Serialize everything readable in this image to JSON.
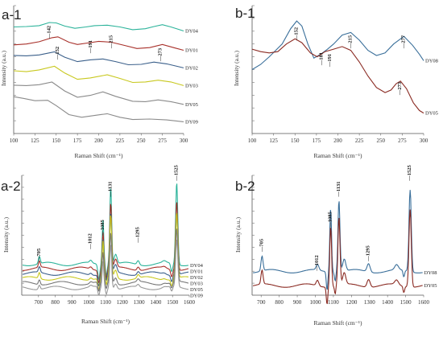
{
  "chart_data": [
    {
      "panel": "a-1",
      "type": "line",
      "title": "a-1",
      "xlabel": "Raman Shift (cm⁻¹)",
      "ylabel": "Intensity (a.u.)",
      "xlim": [
        100,
        300
      ],
      "xticks": [
        "100",
        "125",
        "150",
        "175",
        "200",
        "225",
        "250",
        "275",
        "300"
      ],
      "peak_labels": [
        {
          "x": 142,
          "label": "142"
        },
        {
          "x": 152,
          "label": "152"
        },
        {
          "x": 191,
          "label": "191"
        },
        {
          "x": 215,
          "label": "215"
        },
        {
          "x": 273,
          "label": "273"
        }
      ],
      "series": [
        {
          "name": "DY04",
          "color": "#2bb39a",
          "offset": 0.86,
          "points": [
            [
              100,
              0.12
            ],
            [
              115,
              0.13
            ],
            [
              130,
              0.15
            ],
            [
              142,
              0.22
            ],
            [
              150,
              0.21
            ],
            [
              160,
              0.14
            ],
            [
              172,
              0.09
            ],
            [
              185,
              0.12
            ],
            [
              195,
              0.15
            ],
            [
              210,
              0.16
            ],
            [
              225,
              0.12
            ],
            [
              240,
              0.06
            ],
            [
              255,
              0.08
            ],
            [
              265,
              0.13
            ],
            [
              275,
              0.17
            ],
            [
              285,
              0.12
            ],
            [
              300,
              0.03
            ]
          ]
        },
        {
          "name": "DY01",
          "color": "#a8302a",
          "offset": 0.7,
          "points": [
            [
              100,
              0.14
            ],
            [
              115,
              0.16
            ],
            [
              130,
              0.21
            ],
            [
              145,
              0.3
            ],
            [
              152,
              0.32
            ],
            [
              165,
              0.2
            ],
            [
              175,
              0.15
            ],
            [
              190,
              0.19
            ],
            [
              200,
              0.22
            ],
            [
              215,
              0.2
            ],
            [
              230,
              0.13
            ],
            [
              245,
              0.06
            ],
            [
              260,
              0.08
            ],
            [
              275,
              0.15
            ],
            [
              290,
              0.07
            ],
            [
              300,
              0.02
            ]
          ]
        },
        {
          "name": "DY02",
          "color": "#3a5f8a",
          "offset": 0.55,
          "points": [
            [
              100,
              0.3
            ],
            [
              115,
              0.29
            ],
            [
              130,
              0.31
            ],
            [
              148,
              0.38
            ],
            [
              160,
              0.26
            ],
            [
              175,
              0.16
            ],
            [
              190,
              0.2
            ],
            [
              205,
              0.22
            ],
            [
              220,
              0.16
            ],
            [
              235,
              0.09
            ],
            [
              250,
              0.1
            ],
            [
              265,
              0.15
            ],
            [
              280,
              0.11
            ],
            [
              300,
              0.02
            ]
          ]
        },
        {
          "name": "DY03",
          "color": "#c8c81e",
          "offset": 0.4,
          "points": [
            [
              100,
              0.35
            ],
            [
              115,
              0.33
            ],
            [
              130,
              0.37
            ],
            [
              148,
              0.45
            ],
            [
              160,
              0.3
            ],
            [
              175,
              0.16
            ],
            [
              190,
              0.19
            ],
            [
              210,
              0.26
            ],
            [
              225,
              0.18
            ],
            [
              240,
              0.09
            ],
            [
              255,
              0.1
            ],
            [
              270,
              0.14
            ],
            [
              285,
              0.1
            ],
            [
              300,
              0.02
            ]
          ]
        },
        {
          "name": "DY05",
          "color": "#8a8a8a",
          "offset": 0.24,
          "points": [
            [
              100,
              0.45
            ],
            [
              115,
              0.44
            ],
            [
              130,
              0.46
            ],
            [
              145,
              0.52
            ],
            [
              160,
              0.32
            ],
            [
              175,
              0.18
            ],
            [
              190,
              0.22
            ],
            [
              205,
              0.3
            ],
            [
              220,
              0.2
            ],
            [
              240,
              0.09
            ],
            [
              255,
              0.08
            ],
            [
              270,
              0.12
            ],
            [
              285,
              0.08
            ],
            [
              300,
              0.02
            ]
          ]
        },
        {
          "name": "DY09",
          "color": "#8a8a8a",
          "offset": 0.1,
          "points": [
            [
              100,
              0.56
            ],
            [
              112,
              0.52
            ],
            [
              125,
              0.47
            ],
            [
              140,
              0.48
            ],
            [
              150,
              0.36
            ],
            [
              165,
              0.16
            ],
            [
              180,
              0.1
            ],
            [
              195,
              0.14
            ],
            [
              210,
              0.18
            ],
            [
              225,
              0.1
            ],
            [
              240,
              0.05
            ],
            [
              260,
              0.06
            ],
            [
              280,
              0.04
            ],
            [
              300,
              0.0
            ]
          ]
        }
      ]
    },
    {
      "panel": "b-1",
      "type": "line",
      "title": "b-1",
      "xlabel": "Raman Shift (cm⁻¹)",
      "ylabel": "Intensity (a.u.)",
      "xlim": [
        100,
        300
      ],
      "xticks": [
        "100",
        "125",
        "150",
        "175",
        "200",
        "225",
        "250",
        "275",
        "300"
      ],
      "peak_labels": [
        {
          "x": 152,
          "label": "152"
        },
        {
          "x": 181,
          "label": "181"
        },
        {
          "x": 191,
          "label": "191"
        },
        {
          "x": 215,
          "label": "215"
        },
        {
          "x": 277,
          "label": "277"
        },
        {
          "x": 273,
          "label": "273"
        }
      ],
      "series": [
        {
          "name": "DY08",
          "color": "#3a6f9a",
          "offset": 0.0,
          "points": [
            [
              100,
              0.5
            ],
            [
              110,
              0.54
            ],
            [
              120,
              0.6
            ],
            [
              135,
              0.7
            ],
            [
              145,
              0.82
            ],
            [
              152,
              0.88
            ],
            [
              158,
              0.84
            ],
            [
              165,
              0.7
            ],
            [
              172,
              0.59
            ],
            [
              180,
              0.62
            ],
            [
              188,
              0.66
            ],
            [
              195,
              0.7
            ],
            [
              205,
              0.77
            ],
            [
              215,
              0.79
            ],
            [
              225,
              0.73
            ],
            [
              235,
              0.65
            ],
            [
              245,
              0.61
            ],
            [
              255,
              0.63
            ],
            [
              265,
              0.7
            ],
            [
              277,
              0.76
            ],
            [
              287,
              0.69
            ],
            [
              295,
              0.62
            ],
            [
              300,
              0.57
            ]
          ]
        },
        {
          "name": "DY05",
          "color": "#8a2a22",
          "offset": 0.0,
          "points": [
            [
              100,
              0.66
            ],
            [
              110,
              0.64
            ],
            [
              120,
              0.63
            ],
            [
              130,
              0.64
            ],
            [
              140,
              0.7
            ],
            [
              150,
              0.74
            ],
            [
              158,
              0.71
            ],
            [
              168,
              0.63
            ],
            [
              176,
              0.6
            ],
            [
              185,
              0.64
            ],
            [
              195,
              0.66
            ],
            [
              205,
              0.68
            ],
            [
              215,
              0.65
            ],
            [
              225,
              0.56
            ],
            [
              235,
              0.45
            ],
            [
              245,
              0.36
            ],
            [
              255,
              0.32
            ],
            [
              262,
              0.34
            ],
            [
              268,
              0.39
            ],
            [
              273,
              0.41
            ],
            [
              280,
              0.35
            ],
            [
              288,
              0.24
            ],
            [
              295,
              0.18
            ],
            [
              300,
              0.16
            ]
          ]
        }
      ]
    },
    {
      "panel": "a-2",
      "type": "line",
      "title": "a-2",
      "xlabel": "Raman Shift (cm⁻¹)",
      "ylabel": "Intensity (a.u.)",
      "xlim": [
        600,
        1600
      ],
      "xticks": [
        "700",
        "800",
        "900",
        "1000",
        "1100",
        "1200",
        "1300",
        "1400",
        "1500",
        "1600"
      ],
      "peak_labels": [
        {
          "x": 705,
          "label": "705"
        },
        {
          "x": 1012,
          "label": "1012"
        },
        {
          "x": 1085,
          "label": "1085"
        },
        {
          "x": 1131,
          "label": "1131"
        },
        {
          "x": 1295,
          "label": "1295"
        },
        {
          "x": 1525,
          "label": "1525"
        }
      ],
      "series": [
        {
          "name": "DY04",
          "color": "#2bb39a",
          "offset": 0.26,
          "scale": 0.95
        },
        {
          "name": "DY01",
          "color": "#a8302a",
          "offset": 0.22,
          "scale": 0.8
        },
        {
          "name": "DY02",
          "color": "#3a5f8a",
          "offset": 0.18,
          "scale": 0.72
        },
        {
          "name": "DY03",
          "color": "#c8c81e",
          "offset": 0.14,
          "scale": 0.76
        },
        {
          "name": "DY05",
          "color": "#777777",
          "offset": 0.1,
          "scale": 0.62
        },
        {
          "name": "DY09",
          "color": "#999999",
          "offset": 0.06,
          "scale": 0.55
        }
      ]
    },
    {
      "panel": "b-2",
      "type": "line",
      "title": "b-2",
      "xlabel": "Raman Shift (cm⁻¹)",
      "ylabel": "Intensity (a.u.)",
      "xlim": [
        650,
        1600
      ],
      "xticks": [
        "700",
        "800",
        "900",
        "1000",
        "1100",
        "1200",
        "1300",
        "1400",
        "1500",
        "1600"
      ],
      "peak_labels": [
        {
          "x": 705,
          "label": "705"
        },
        {
          "x": 1012,
          "label": "1012"
        },
        {
          "x": 1085,
          "label": "1085"
        },
        {
          "x": 1131,
          "label": "1131"
        },
        {
          "x": 1295,
          "label": "1295"
        },
        {
          "x": 1525,
          "label": "1525"
        }
      ],
      "series": [
        {
          "name": "DY08",
          "color": "#3a6f9a",
          "offset": 0.2,
          "scale": 0.95
        },
        {
          "name": "DY05",
          "color": "#8a2a22",
          "offset": 0.08,
          "scale": 0.9
        }
      ]
    }
  ]
}
